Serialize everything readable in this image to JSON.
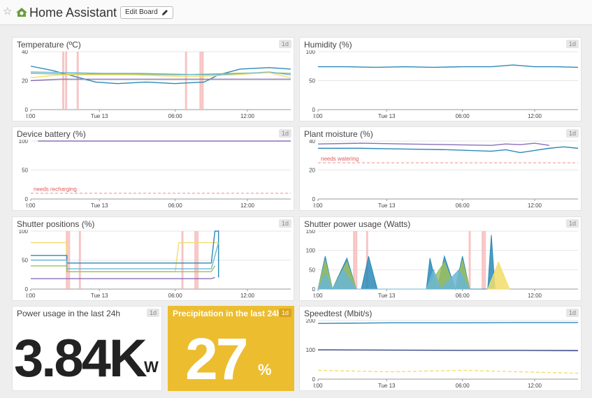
{
  "header": {
    "title": "Home Assistant",
    "edit_button": "Edit Board",
    "star_icon": "☆"
  },
  "period_badge": "1d",
  "x_ticks": [
    "l:00",
    "Tue 13",
    "06:00",
    "12:00"
  ],
  "colors": {
    "blue": "#2b89b8",
    "light_blue": "#6bb6d6",
    "purple": "#8a6fb9",
    "yellow": "#f2dd6b",
    "green": "#9cc05f",
    "navy": "#3b4a8a",
    "red_band": "#f6b7b7",
    "threshold": "#f08c8c",
    "accent": "#ecbd2f"
  },
  "tiles": {
    "temperature": {
      "title": "Temperature (ºC)"
    },
    "humidity": {
      "title": "Humidity (%)"
    },
    "battery": {
      "title": "Device battery (%)",
      "threshold_label": "needs recharging"
    },
    "moisture": {
      "title": "Plant moisture (%)",
      "threshold_label": "needs watering"
    },
    "shutter_positions": {
      "title": "Shutter positions (%)"
    },
    "shutter_power": {
      "title": "Shutter power usage (Watts)"
    },
    "power_usage": {
      "title": "Power usage in the last 24h",
      "value": "3.84K",
      "unit": "W"
    },
    "precipitation": {
      "title": "Precipitation in the last 24h",
      "value": "27",
      "unit": "%"
    },
    "speedtest": {
      "title": "Speedtest (Mbit/s)"
    }
  },
  "chart_data": [
    {
      "type": "line",
      "title": "Temperature (ºC)",
      "x": [
        "l:00",
        "Tue 13",
        "06:00",
        "12:00"
      ],
      "ylim": [
        0,
        40
      ],
      "y_ticks": [
        0,
        20,
        40
      ],
      "series": [
        {
          "color": "blue",
          "values": [
            [
              0,
              30
            ],
            [
              3,
              27
            ],
            [
              6,
              23
            ],
            [
              9,
              19
            ],
            [
              12,
              18
            ],
            [
              16,
              19
            ],
            [
              20,
              18
            ],
            [
              24,
              19
            ],
            [
              26,
              24
            ],
            [
              29,
              28
            ],
            [
              33,
              29
            ],
            [
              36,
              28
            ]
          ]
        },
        {
          "color": "green",
          "values": [
            [
              0,
              25
            ],
            [
              5,
              24.5
            ],
            [
              10,
              24.5
            ],
            [
              15,
              24.5
            ],
            [
              20,
              24
            ],
            [
              24,
              24.5
            ],
            [
              28,
              25
            ],
            [
              33,
              25.5
            ],
            [
              36,
              25
            ]
          ]
        },
        {
          "color": "light_blue",
          "values": [
            [
              0,
              26
            ],
            [
              5,
              25.5
            ],
            [
              10,
              25
            ],
            [
              15,
              25
            ],
            [
              20,
              24.5
            ],
            [
              24,
              24
            ],
            [
              28,
              24.5
            ],
            [
              33,
              26
            ],
            [
              36,
              24
            ]
          ]
        },
        {
          "color": "yellow",
          "values": [
            [
              0,
              22
            ],
            [
              4,
              24
            ],
            [
              8,
              24
            ],
            [
              14,
              24
            ],
            [
              20,
              23
            ],
            [
              24,
              23
            ],
            [
              28,
              24
            ],
            [
              33,
              25.5
            ],
            [
              36,
              22
            ]
          ]
        },
        {
          "color": "purple",
          "values": [
            [
              0,
              20
            ],
            [
              4,
              21
            ],
            [
              10,
              21
            ],
            [
              16,
              21
            ],
            [
              22,
              21
            ],
            [
              28,
              21
            ],
            [
              33,
              21
            ],
            [
              36,
              21
            ]
          ]
        }
      ],
      "bands": [
        4.5,
        4.9,
        6.5,
        21.5,
        23.5,
        23.8
      ]
    },
    {
      "type": "line",
      "title": "Humidity (%)",
      "x": [
        "l:00",
        "Tue 13",
        "06:00",
        "12:00"
      ],
      "ylim": [
        0,
        100
      ],
      "y_ticks": [
        0,
        50,
        100
      ],
      "series": [
        {
          "color": "blue",
          "values": [
            [
              0,
              74
            ],
            [
              4,
              74
            ],
            [
              8,
              73
            ],
            [
              12,
              74
            ],
            [
              16,
              73
            ],
            [
              20,
              74
            ],
            [
              24,
              74
            ],
            [
              27,
              77
            ],
            [
              30,
              74
            ],
            [
              33,
              74
            ],
            [
              36,
              73
            ]
          ]
        }
      ]
    },
    {
      "type": "line",
      "title": "Device battery (%)",
      "x": [
        "l:00",
        "Tue 13",
        "06:00",
        "12:00"
      ],
      "ylim": [
        0,
        100
      ],
      "y_ticks": [
        0,
        50,
        100
      ],
      "threshold": 10,
      "series": [
        {
          "color": "purple",
          "values": [
            [
              1,
              100
            ],
            [
              36,
              100
            ]
          ]
        }
      ]
    },
    {
      "type": "line",
      "title": "Plant moisture (%)",
      "x": [
        "l:00",
        "Tue 13",
        "06:00",
        "12:00"
      ],
      "ylim": [
        0,
        40
      ],
      "y_ticks": [
        0,
        20,
        40
      ],
      "threshold": 25,
      "series": [
        {
          "color": "purple",
          "values": [
            [
              0,
              38
            ],
            [
              6,
              38.5
            ],
            [
              12,
              38
            ],
            [
              18,
              37.5
            ],
            [
              24,
              37
            ],
            [
              26,
              38
            ],
            [
              28,
              37.5
            ],
            [
              30,
              38.5
            ],
            [
              32,
              37
            ]
          ]
        },
        {
          "color": "blue",
          "values": [
            [
              0,
              35
            ],
            [
              6,
              35
            ],
            [
              12,
              34.5
            ],
            [
              18,
              34
            ],
            [
              24,
              33
            ],
            [
              26,
              34
            ],
            [
              28,
              32
            ],
            [
              30,
              33.5
            ],
            [
              32,
              35
            ],
            [
              34,
              36
            ],
            [
              36,
              35
            ]
          ]
        }
      ]
    },
    {
      "type": "line",
      "title": "Shutter positions (%)",
      "x": [
        "l:00",
        "Tue 13",
        "06:00",
        "12:00"
      ],
      "ylim": [
        0,
        100
      ],
      "y_ticks": [
        0,
        50,
        100
      ],
      "series": [
        {
          "color": "yellow",
          "values": [
            [
              0,
              80
            ],
            [
              5,
              80
            ],
            [
              5,
              30
            ],
            [
              20,
              30
            ],
            [
              20.5,
              80
            ],
            [
              26,
              80
            ]
          ]
        },
        {
          "color": "blue",
          "values": [
            [
              0,
              58
            ],
            [
              5,
              58
            ],
            [
              5,
              45
            ],
            [
              25,
              45
            ],
            [
              25.5,
              100
            ],
            [
              26,
              100
            ],
            [
              26,
              20
            ]
          ]
        },
        {
          "color": "light_blue",
          "values": [
            [
              0,
              50
            ],
            [
              5,
              50
            ],
            [
              5,
              35
            ],
            [
              25,
              35
            ],
            [
              26,
              80
            ]
          ]
        },
        {
          "color": "green",
          "values": [
            [
              0,
              40
            ],
            [
              5,
              40
            ],
            [
              5,
              30
            ],
            [
              25,
              30
            ],
            [
              25.5,
              40
            ]
          ]
        },
        {
          "color": "purple",
          "values": [
            [
              0,
              18
            ],
            [
              25,
              18
            ],
            [
              25.5,
              20
            ]
          ]
        }
      ],
      "bands": [
        5,
        5.3,
        6.8,
        21,
        22.8,
        23.1
      ]
    },
    {
      "type": "area",
      "title": "Shutter power usage (Watts)",
      "x": [
        "l:00",
        "Tue 13",
        "06:00",
        "12:00"
      ],
      "ylim": [
        0,
        150
      ],
      "y_ticks": [
        0,
        50,
        100,
        150
      ],
      "series": [
        {
          "color": "blue",
          "values": [
            [
              0,
              0
            ],
            [
              1,
              85
            ],
            [
              2,
              0
            ],
            [
              4,
              80
            ],
            [
              5.3,
              0
            ],
            [
              6,
              0
            ],
            [
              7,
              85
            ],
            [
              8.2,
              0
            ],
            [
              15,
              0
            ],
            [
              15.5,
              80
            ],
            [
              16.5,
              0
            ],
            [
              17.5,
              85
            ],
            [
              19,
              0
            ],
            [
              20,
              85
            ],
            [
              21,
              0
            ],
            [
              23.5,
              0
            ],
            [
              24,
              140
            ],
            [
              24.5,
              0
            ]
          ]
        },
        {
          "color": "green",
          "values": [
            [
              0,
              0
            ],
            [
              1,
              75
            ],
            [
              2,
              0
            ],
            [
              4,
              70
            ],
            [
              5.3,
              0
            ],
            [
              15,
              0
            ],
            [
              17.5,
              70
            ],
            [
              19,
              0
            ],
            [
              20,
              75
            ],
            [
              21,
              0
            ]
          ]
        },
        {
          "color": "yellow",
          "values": [
            [
              23.5,
              0
            ],
            [
              25,
              70
            ],
            [
              26.5,
              0
            ]
          ]
        },
        {
          "color": "light_blue",
          "values": [
            [
              0,
              0
            ],
            [
              1,
              40
            ],
            [
              2,
              0
            ],
            [
              3.5,
              50
            ],
            [
              5.3,
              0
            ],
            [
              15,
              0
            ],
            [
              16,
              50
            ],
            [
              17,
              0
            ],
            [
              19.5,
              50
            ],
            [
              21,
              0
            ]
          ]
        }
      ],
      "bands": [
        5,
        5.3,
        6.8,
        21,
        22.8,
        23.1
      ]
    },
    {
      "type": "line",
      "title": "Speedtest (Mbit/s)",
      "x": [
        "l:00",
        "Tue 13",
        "06:00",
        "12:00"
      ],
      "ylim": [
        0,
        200
      ],
      "y_ticks": [
        0,
        100,
        200
      ],
      "series": [
        {
          "color": "blue",
          "values": [
            [
              0,
              190
            ],
            [
              10,
              192
            ],
            [
              20,
              192
            ],
            [
              28,
              193
            ],
            [
              36,
              193
            ]
          ]
        },
        {
          "color": "navy",
          "values": [
            [
              0,
              100
            ],
            [
              10,
              99
            ],
            [
              20,
              98
            ],
            [
              28,
              98
            ],
            [
              36,
              97
            ]
          ]
        },
        {
          "color": "yellow",
          "dashed": true,
          "values": [
            [
              0,
              30
            ],
            [
              10,
              25
            ],
            [
              20,
              30
            ],
            [
              28,
              25
            ],
            [
              36,
              20
            ]
          ]
        }
      ]
    }
  ]
}
